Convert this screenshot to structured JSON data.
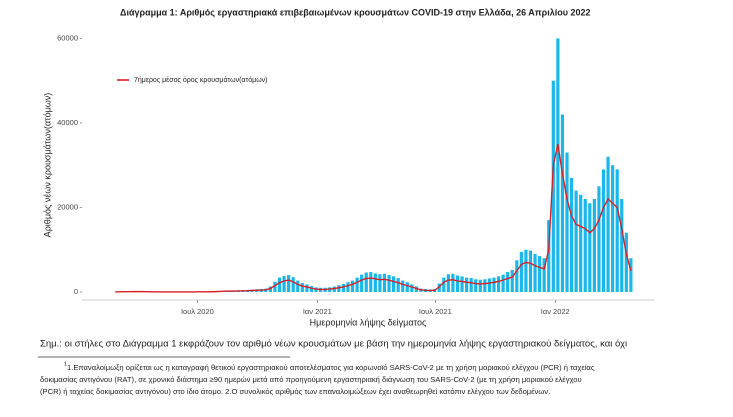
{
  "chart_data": {
    "type": "bar+line",
    "title": "Διάγραμμα 1: Αριθμός εργαστηριακά επιβεβαιωμένων κρουσμάτων COVID-19 στην Ελλάδα, 26 Απριλίου 2022",
    "ylabel": "Αριθμός νέων κρουσμάτων(ατόμων)",
    "xlabel": "Ημερομηνία λήψης δείγματος",
    "x": [
      0,
      7,
      14,
      21,
      28,
      35,
      42,
      49,
      56,
      63,
      70,
      77,
      84,
      91,
      98,
      105,
      112,
      119,
      126,
      133,
      140,
      147,
      154,
      161,
      168,
      175,
      182,
      189,
      196,
      203,
      210,
      217,
      224,
      231,
      238,
      245,
      252,
      259,
      266,
      273,
      280,
      287,
      294,
      301,
      308,
      315,
      322,
      329,
      336,
      343,
      350,
      357,
      364,
      371,
      378,
      385,
      392,
      399,
      406,
      413,
      420,
      427,
      434,
      441,
      448,
      455,
      462,
      469,
      476,
      483,
      490,
      497,
      504,
      511,
      518,
      525,
      532,
      539,
      546,
      553,
      560,
      567,
      574,
      581,
      588,
      595,
      602,
      609,
      616,
      623,
      630,
      637,
      644,
      651,
      658,
      665,
      672,
      679,
      686,
      693,
      700,
      707,
      714,
      721,
      728,
      735,
      742,
      749,
      756,
      763,
      770,
      777,
      784,
      791
    ],
    "xlim": [
      -51,
      828
    ],
    "xticks": [
      {
        "value": 126,
        "label": "Ιουλ 2020"
      },
      {
        "value": 310,
        "label": "Ιαν 2021"
      },
      {
        "value": 491,
        "label": "Ιουλ 2021"
      },
      {
        "value": 675,
        "label": "Ιαν 2022"
      }
    ],
    "ylim": [
      -1900,
      62000
    ],
    "yticks": [
      0,
      20000,
      40000,
      60000
    ],
    "grid": false,
    "legend": "top-left",
    "series": [
      {
        "type": "bar",
        "color": "#1ab8ea",
        "values": [
          40,
          70,
          100,
          110,
          150,
          160,
          130,
          100,
          70,
          50,
          40,
          30,
          30,
          30,
          30,
          30,
          30,
          30,
          50,
          60,
          70,
          90,
          140,
          200,
          300,
          330,
          360,
          400,
          450,
          480,
          560,
          650,
          700,
          800,
          1300,
          2400,
          3400,
          3800,
          4000,
          3500,
          2700,
          2100,
          1800,
          1400,
          1100,
          1000,
          1000,
          1100,
          1300,
          1600,
          1900,
          2300,
          2700,
          3400,
          4100,
          4600,
          4700,
          4400,
          4200,
          4300,
          4000,
          3700,
          3300,
          2700,
          2300,
          1800,
          1300,
          800,
          700,
          600,
          700,
          2000,
          3400,
          4200,
          4300,
          3900,
          3700,
          3400,
          3300,
          3000,
          2900,
          3000,
          3200,
          3400,
          3700,
          4100,
          4700,
          5200,
          7500,
          9500,
          10000,
          9800,
          9000,
          8500,
          8000,
          17000,
          50000,
          60000,
          42000,
          33000,
          27000,
          24000,
          23000,
          22000,
          21000,
          22000,
          25000,
          29000,
          32000,
          30000,
          29000,
          22000,
          14000,
          8000
        ]
      },
      {
        "type": "line",
        "name": "7ήμερος μέσος όρος κρουσμάτων(ατόμων)",
        "color": "#d62027",
        "values": [
          20,
          40,
          60,
          60,
          80,
          100,
          80,
          60,
          40,
          30,
          20,
          20,
          20,
          20,
          20,
          20,
          20,
          20,
          30,
          40,
          40,
          50,
          80,
          120,
          180,
          200,
          220,
          250,
          280,
          300,
          350,
          400,
          450,
          500,
          800,
          1500,
          2200,
          2600,
          2800,
          2400,
          1800,
          1400,
          1200,
          900,
          700,
          600,
          600,
          700,
          800,
          1000,
          1200,
          1500,
          1800,
          2300,
          2800,
          3200,
          3300,
          3100,
          2900,
          3000,
          2800,
          2500,
          2200,
          1800,
          1500,
          1200,
          800,
          500,
          400,
          350,
          400,
          1200,
          2300,
          2800,
          2900,
          2600,
          2500,
          2300,
          2200,
          2000,
          1900,
          2000,
          2100,
          2300,
          2500,
          2800,
          3200,
          3500,
          5000,
          6500,
          7000,
          6800,
          6200,
          5800,
          5500,
          10000,
          30000,
          35000,
          28000,
          22000,
          18000,
          16000,
          15500,
          15000,
          14000,
          15000,
          17000,
          20000,
          22000,
          21000,
          20000,
          15000,
          9000,
          5000
        ]
      }
    ]
  },
  "notes": {
    "remark": "Σημ.: οι στήλες στο Διάγραμμα 1 εκφράζουν τον αριθμό νέων κρουσμάτων με βάση την ημερομηνία λήψης εργαστηριακού δείγματος, και όχι",
    "footnote_mark": "1",
    "footnote_lines": [
      "1.Επαναλοίμωξη ορίζεται ως η καταγραφή θετικού εργαστηριακού αποτελέσματος για κορωνοϊό SARS-CoV-2 με τη χρήση μοριακού ελέγχου (PCR) ή ταχείας",
      "δοκιμασίας αντιγόνου (RAT), σε χρονικό διάστημα ≥90 ημερών μετά από προηγούμενη εργαστηριακή διάγνωση του SARS-CoV-2 (με τη χρήση μοριακού ελέγχου",
      "(PCR) ή ταχείας δοκιμασίας αντιγόνου) στο ίδιο άτομο. 2.Ο συνολικός αριθμός των επαναλοιμώξεων έχει αναθεωρηθεί κατόπιν ελέγχου των δεδομένων."
    ]
  }
}
